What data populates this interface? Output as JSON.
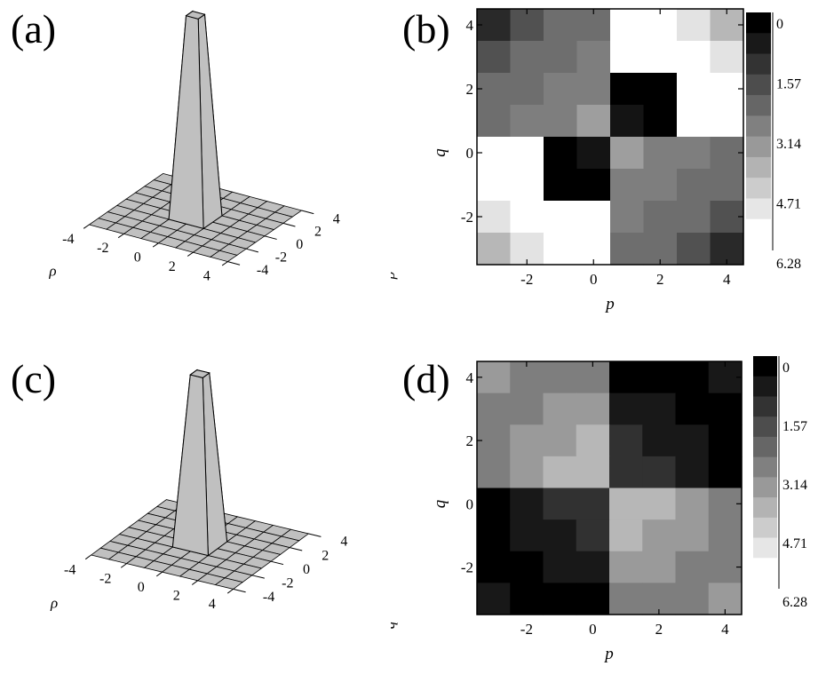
{
  "panels": [
    {
      "label": "(a)"
    },
    {
      "label": "(b)"
    },
    {
      "label": "(c)"
    },
    {
      "label": "(d)"
    }
  ],
  "chart_data": [
    {
      "panel": "(a)",
      "type": "surface3d",
      "title": "",
      "grid_values": [
        -4,
        -3,
        -2,
        -1,
        0,
        1,
        2,
        3,
        4
      ],
      "x_ticks": [
        "-4",
        "-2",
        "0",
        "2",
        "4"
      ],
      "y_ticks": [
        "-4",
        "-2",
        "0",
        "2",
        "4"
      ],
      "xlabel": "ρ",
      "ylabel": "",
      "peak": {
        "center": [
          0,
          0
        ],
        "value": 1
      },
      "z_grid": [
        [
          0,
          0,
          0,
          0,
          0,
          0,
          0,
          0,
          0
        ],
        [
          0,
          0,
          0,
          0,
          0,
          0,
          0,
          0,
          0
        ],
        [
          0,
          0,
          0,
          0,
          0,
          0,
          0,
          0,
          0
        ],
        [
          0,
          0,
          0,
          0,
          0,
          0,
          0,
          0,
          0
        ],
        [
          0,
          0,
          0,
          0,
          1,
          0,
          0,
          0,
          0
        ],
        [
          0,
          0,
          0,
          0,
          0,
          0,
          0,
          0,
          0
        ],
        [
          0,
          0,
          0,
          0,
          0,
          0,
          0,
          0,
          0
        ],
        [
          0,
          0,
          0,
          0,
          0,
          0,
          0,
          0,
          0
        ],
        [
          0,
          0,
          0,
          0,
          0,
          0,
          0,
          0,
          0
        ]
      ]
    },
    {
      "panel": "(b)",
      "type": "heatmap",
      "xlabel": "p",
      "ylabel": "q",
      "left_label": "ρ",
      "x_values": [
        -3,
        -2,
        -1,
        0,
        1,
        2,
        3,
        4
      ],
      "y_values": [
        4,
        3,
        2,
        1,
        0,
        -1,
        -2,
        -3
      ],
      "x_ticks": [
        "-2",
        "0",
        "2",
        "4"
      ],
      "y_ticks": [
        "4",
        "2",
        "0",
        "-2"
      ],
      "zlim": [
        0,
        6.28
      ],
      "colorbar_ticks": [
        "0",
        "1.57",
        "3.14",
        "4.71",
        "6.28"
      ],
      "matrix": [
        [
          1.0,
          2.0,
          2.7,
          2.7,
          6.28,
          6.28,
          5.6,
          4.5
        ],
        [
          2.0,
          2.7,
          2.7,
          3.1,
          6.28,
          6.28,
          6.28,
          5.6
        ],
        [
          2.7,
          2.7,
          3.1,
          3.1,
          0.0,
          0.0,
          6.28,
          6.28
        ],
        [
          2.7,
          3.1,
          3.1,
          3.9,
          0.5,
          0.0,
          6.28,
          6.28
        ],
        [
          6.28,
          6.28,
          0.0,
          0.5,
          3.9,
          3.1,
          3.1,
          2.7
        ],
        [
          6.28,
          6.28,
          0.0,
          0.0,
          3.1,
          3.1,
          2.7,
          2.7
        ],
        [
          5.6,
          6.28,
          6.28,
          6.28,
          3.1,
          2.7,
          2.7,
          2.0
        ],
        [
          4.5,
          5.6,
          6.28,
          6.28,
          2.7,
          2.7,
          2.0,
          1.0
        ]
      ]
    },
    {
      "panel": "(c)",
      "type": "surface3d",
      "title": "",
      "grid_values": [
        -4,
        -3,
        -2,
        -1,
        0,
        1,
        2,
        3,
        4
      ],
      "x_ticks": [
        "-4",
        "-2",
        "0",
        "2",
        "4"
      ],
      "y_ticks": [
        "-4",
        "-2",
        "0",
        "2",
        "4"
      ],
      "xlabel": "ρ",
      "ylabel": "",
      "peak": {
        "center": [
          0,
          0
        ],
        "value": 1
      },
      "z_grid": [
        [
          0,
          0,
          0,
          0,
          0,
          0,
          0,
          0,
          0
        ],
        [
          0,
          0,
          0,
          0,
          0,
          0,
          0,
          0,
          0
        ],
        [
          0,
          0,
          0,
          0,
          0,
          0,
          0,
          0,
          0
        ],
        [
          0,
          0,
          0,
          0,
          0,
          0,
          0,
          0,
          0
        ],
        [
          0,
          0,
          0,
          0,
          1,
          0,
          0,
          0,
          0
        ],
        [
          0,
          0,
          0,
          0,
          0,
          0,
          0,
          0,
          0
        ],
        [
          0,
          0,
          0,
          0,
          0,
          0,
          0,
          0,
          0
        ],
        [
          0,
          0,
          0,
          0,
          0,
          0,
          0,
          0,
          0
        ],
        [
          0,
          0,
          0,
          0,
          0,
          0,
          0,
          0,
          0
        ]
      ]
    },
    {
      "panel": "(d)",
      "type": "heatmap",
      "xlabel": "p",
      "ylabel": "q",
      "left_label": "q",
      "x_values": [
        -3,
        -2,
        -1,
        0,
        1,
        2,
        3,
        4
      ],
      "y_values": [
        4,
        3,
        2,
        1,
        0,
        -1,
        -2,
        -3
      ],
      "x_ticks": [
        "-2",
        "0",
        "2",
        "4"
      ],
      "y_ticks": [
        "4",
        "2",
        "0",
        "-2"
      ],
      "zlim": [
        0,
        6.28
      ],
      "colorbar_ticks": [
        "0",
        "1.57",
        "3.14",
        "4.71",
        "6.28"
      ],
      "matrix": [
        [
          3.8,
          3.1,
          3.1,
          3.1,
          0.0,
          0.0,
          0.0,
          0.6
        ],
        [
          3.1,
          3.1,
          3.8,
          3.8,
          0.6,
          0.6,
          0.0,
          0.0
        ],
        [
          3.1,
          3.8,
          3.8,
          4.5,
          1.2,
          0.6,
          0.6,
          0.0
        ],
        [
          3.1,
          3.8,
          4.5,
          4.5,
          1.2,
          1.2,
          0.6,
          0.0
        ],
        [
          0.0,
          0.6,
          1.2,
          1.2,
          4.5,
          4.5,
          3.8,
          3.1
        ],
        [
          0.0,
          0.6,
          0.6,
          1.2,
          4.5,
          3.8,
          3.8,
          3.1
        ],
        [
          0.0,
          0.0,
          0.6,
          0.6,
          3.8,
          3.8,
          3.1,
          3.1
        ],
        [
          0.6,
          0.0,
          0.0,
          0.0,
          3.1,
          3.1,
          3.1,
          3.8
        ]
      ]
    }
  ]
}
